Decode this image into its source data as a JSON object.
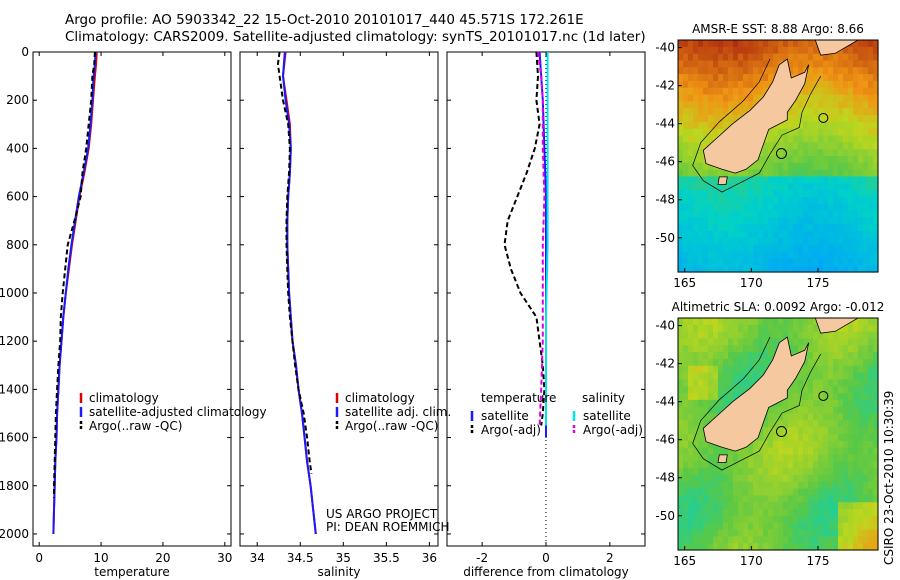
{
  "header": {
    "line1": "Argo profile: AO 5903342_22 15-Oct-2010 20101017_440 45.571S 172.261E",
    "line2": "Climatology: CARS2009. Satellite-adjusted climatology: synTS_20101017.nc (1d later)"
  },
  "credit": {
    "line1": "US ARGO PROJECT",
    "line2": "PI: DEAN ROEMMICH"
  },
  "footer": "CSIRO 23-Oct-2010 10:30:39",
  "colors": {
    "climatology": "#e00000",
    "satellite": "#1a1aff",
    "argo": "#000000",
    "sal_satellite": "#00e5e5",
    "sal_argo": "#e000e0",
    "land": "#f5c8a0"
  },
  "chart_data": [
    {
      "id": "temperature",
      "type": "line",
      "xlabel": "temperature",
      "xlim": [
        -1,
        31
      ],
      "ylim": [
        2050,
        0
      ],
      "xticks": [
        0,
        10,
        20,
        30
      ],
      "xtick_labels": [
        "0",
        "10",
        "20",
        "30"
      ],
      "yticks": [
        0,
        200,
        400,
        600,
        800,
        1000,
        1200,
        1400,
        1600,
        1800,
        2000
      ],
      "ytick_labels": [
        "0",
        "200",
        "400",
        "600",
        "800",
        "1000",
        "1200",
        "1400",
        "1600",
        "1800",
        "2000"
      ],
      "legend": [
        "climatology",
        "satellite-adjusted climatology",
        "Argo(..raw -QC)"
      ],
      "series": [
        {
          "name": "climatology",
          "color": "#e00000",
          "dash": "",
          "points": [
            [
              9.3,
              0
            ],
            [
              9.2,
              50
            ],
            [
              9.0,
              100
            ],
            [
              8.7,
              200
            ],
            [
              8.4,
              300
            ],
            [
              8.0,
              400
            ],
            [
              7.3,
              500
            ],
            [
              6.5,
              600
            ],
            [
              5.9,
              700
            ],
            [
              5.3,
              800
            ],
            [
              4.8,
              900
            ],
            [
              4.3,
              1000
            ],
            [
              3.9,
              1100
            ],
            [
              3.6,
              1200
            ],
            [
              3.3,
              1300
            ],
            [
              3.1,
              1400
            ],
            [
              2.9,
              1500
            ],
            [
              2.8,
              1600
            ],
            [
              2.6,
              1700
            ],
            [
              2.5,
              1800
            ],
            [
              2.4,
              1900
            ],
            [
              2.3,
              2000
            ]
          ]
        },
        {
          "name": "satellite-adjusted climatology",
          "color": "#1a1aff",
          "dash": "",
          "points": [
            [
              9.1,
              0
            ],
            [
              9.0,
              50
            ],
            [
              8.8,
              100
            ],
            [
              8.6,
              200
            ],
            [
              8.3,
              300
            ],
            [
              7.9,
              400
            ],
            [
              7.2,
              500
            ],
            [
              6.4,
              600
            ],
            [
              5.8,
              700
            ],
            [
              5.2,
              800
            ],
            [
              4.7,
              900
            ],
            [
              4.3,
              1000
            ],
            [
              3.9,
              1100
            ],
            [
              3.6,
              1200
            ],
            [
              3.3,
              1300
            ],
            [
              3.1,
              1400
            ],
            [
              2.9,
              1500
            ],
            [
              2.8,
              1600
            ],
            [
              2.6,
              1700
            ],
            [
              2.5,
              1800
            ],
            [
              2.4,
              1900
            ],
            [
              2.3,
              2000
            ]
          ]
        },
        {
          "name": "Argo(..raw -QC)",
          "color": "#000000",
          "dash": "5,3",
          "points": [
            [
              9.0,
              0
            ],
            [
              8.9,
              50
            ],
            [
              8.6,
              100
            ],
            [
              8.4,
              200
            ],
            [
              8.0,
              300
            ],
            [
              7.6,
              400
            ],
            [
              7.0,
              500
            ],
            [
              6.7,
              600
            ],
            [
              5.7,
              700
            ],
            [
              4.6,
              800
            ],
            [
              4.2,
              900
            ],
            [
              3.8,
              1000
            ],
            [
              3.5,
              1100
            ],
            [
              3.4,
              1200
            ],
            [
              3.1,
              1300
            ],
            [
              2.9,
              1400
            ],
            [
              2.7,
              1500
            ],
            [
              2.6,
              1600
            ],
            [
              2.5,
              1700
            ],
            [
              2.4,
              1800
            ],
            [
              2.4,
              1850
            ]
          ]
        }
      ]
    },
    {
      "id": "salinity",
      "type": "line",
      "xlabel": "salinity",
      "xlim": [
        33.8,
        36.1
      ],
      "ylim": [
        2050,
        0
      ],
      "xticks": [
        34,
        34.5,
        35,
        35.5,
        36
      ],
      "xtick_labels": [
        "34",
        "34.5",
        "35",
        "35.5",
        "36"
      ],
      "legend": [
        "climatology",
        "satellite adj. clim.",
        "Argo(..raw -QC)"
      ],
      "series": [
        {
          "name": "climatology",
          "color": "#e00000",
          "dash": "",
          "points": [
            [
              34.33,
              0
            ],
            [
              34.3,
              100
            ],
            [
              34.34,
              200
            ],
            [
              34.38,
              300
            ],
            [
              34.39,
              400
            ],
            [
              34.38,
              500
            ],
            [
              34.36,
              600
            ],
            [
              34.35,
              700
            ],
            [
              34.35,
              800
            ],
            [
              34.36,
              900
            ],
            [
              34.37,
              1000
            ],
            [
              34.39,
              1100
            ],
            [
              34.41,
              1200
            ],
            [
              34.45,
              1300
            ],
            [
              34.48,
              1400
            ],
            [
              34.52,
              1500
            ],
            [
              34.55,
              1600
            ],
            [
              34.58,
              1700
            ],
            [
              34.62,
              1800
            ],
            [
              34.65,
              1900
            ],
            [
              34.68,
              2000
            ]
          ]
        },
        {
          "name": "satellite adj. clim.",
          "color": "#1a1aff",
          "dash": "",
          "points": [
            [
              34.32,
              0
            ],
            [
              34.3,
              100
            ],
            [
              34.33,
              200
            ],
            [
              34.37,
              300
            ],
            [
              34.39,
              400
            ],
            [
              34.38,
              500
            ],
            [
              34.36,
              600
            ],
            [
              34.35,
              700
            ],
            [
              34.35,
              800
            ],
            [
              34.36,
              900
            ],
            [
              34.37,
              1000
            ],
            [
              34.39,
              1100
            ],
            [
              34.41,
              1200
            ],
            [
              34.45,
              1300
            ],
            [
              34.48,
              1400
            ],
            [
              34.52,
              1500
            ],
            [
              34.55,
              1600
            ],
            [
              34.58,
              1700
            ],
            [
              34.62,
              1800
            ],
            [
              34.65,
              1900
            ],
            [
              34.68,
              2000
            ]
          ]
        },
        {
          "name": "Argo(..raw -QC)",
          "color": "#000000",
          "dash": "5,3",
          "points": [
            [
              34.26,
              0
            ],
            [
              34.24,
              50
            ],
            [
              34.26,
              100
            ],
            [
              34.3,
              200
            ],
            [
              34.36,
              300
            ],
            [
              34.38,
              400
            ],
            [
              34.37,
              500
            ],
            [
              34.35,
              600
            ],
            [
              34.34,
              700
            ],
            [
              34.34,
              800
            ],
            [
              34.35,
              900
            ],
            [
              34.36,
              1000
            ],
            [
              34.38,
              1100
            ],
            [
              34.41,
              1200
            ],
            [
              34.44,
              1300
            ],
            [
              34.48,
              1400
            ],
            [
              34.54,
              1500
            ],
            [
              34.58,
              1600
            ],
            [
              34.61,
              1700
            ],
            [
              34.63,
              1750
            ]
          ]
        }
      ]
    },
    {
      "id": "difference",
      "type": "line",
      "xlabel": "difference from climatology",
      "xlim": [
        -3.1,
        3.1
      ],
      "ylim": [
        2050,
        0
      ],
      "xticks": [
        -2,
        0,
        2
      ],
      "xtick_labels": [
        "-2",
        "0",
        "2"
      ],
      "zero_line": 0,
      "legend_temperature_title": "temperature",
      "legend_salinity_title": "salinity",
      "legend": [
        "satellite",
        "Argo(-adj)",
        "satellite",
        "Argo(-adj)"
      ],
      "series": [
        {
          "name": "temperature satellite",
          "color": "#1a1aff",
          "dash": "",
          "points": [
            [
              -0.2,
              0
            ],
            [
              -0.15,
              100
            ],
            [
              -0.1,
              200
            ],
            [
              -0.05,
              400
            ],
            [
              0.0,
              600
            ],
            [
              0.0,
              800
            ],
            [
              0.0,
              1000
            ],
            [
              0.0,
              1200
            ],
            [
              0.0,
              1400
            ],
            [
              0.0,
              1600
            ]
          ]
        },
        {
          "name": "temperature Argo(-adj)",
          "color": "#000000",
          "dash": "5,3",
          "points": [
            [
              -0.3,
              0
            ],
            [
              -0.25,
              100
            ],
            [
              -0.3,
              200
            ],
            [
              -0.2,
              300
            ],
            [
              -0.35,
              400
            ],
            [
              -0.6,
              500
            ],
            [
              -0.9,
              600
            ],
            [
              -1.2,
              700
            ],
            [
              -1.3,
              800
            ],
            [
              -1.1,
              900
            ],
            [
              -0.8,
              1000
            ],
            [
              -0.3,
              1100
            ],
            [
              -0.2,
              1200
            ],
            [
              -0.1,
              1300
            ],
            [
              -0.05,
              1400
            ],
            [
              -0.1,
              1500
            ],
            [
              -0.15,
              1550
            ]
          ]
        },
        {
          "name": "salinity satellite",
          "color": "#00e5e5",
          "dash": "",
          "points": [
            [
              0.05,
              0
            ],
            [
              0.05,
              100
            ],
            [
              0.05,
              300
            ],
            [
              0.05,
              500
            ],
            [
              0.05,
              800
            ],
            [
              0.0,
              1100
            ],
            [
              0.0,
              1400
            ],
            [
              0.0,
              1550
            ]
          ]
        },
        {
          "name": "salinity Argo(-adj)",
          "color": "#e000e0",
          "dash": "5,3",
          "points": [
            [
              -0.25,
              0
            ],
            [
              -0.15,
              100
            ],
            [
              -0.1,
              200
            ],
            [
              -0.1,
              400
            ],
            [
              -0.05,
              600
            ],
            [
              -0.1,
              800
            ],
            [
              -0.1,
              1000
            ],
            [
              -0.1,
              1200
            ],
            [
              -0.15,
              1400
            ],
            [
              -0.2,
              1550
            ]
          ]
        }
      ]
    },
    {
      "id": "sst_map",
      "type": "heatmap",
      "title": "AMSR-E SST: 8.88 Argo: 8.66",
      "xticks": [
        165,
        170,
        175
      ],
      "xtick_labels": [
        "165",
        "170",
        "175"
      ],
      "yticks": [
        -40,
        -42,
        -44,
        -46,
        -48,
        -50
      ],
      "ytick_labels": [
        "-40",
        "-42",
        "-44",
        "-46",
        "-48",
        "-50"
      ],
      "xlim": [
        164.5,
        179.5
      ],
      "ylim": [
        -51.8,
        -39.6
      ]
    },
    {
      "id": "sla_map",
      "type": "heatmap",
      "title": "Altimetric SLA: 0.0092 Argo: -0.012",
      "xticks": [
        165,
        170,
        175
      ],
      "xtick_labels": [
        "165",
        "170",
        "175"
      ],
      "yticks": [
        -40,
        -42,
        -44,
        -46,
        -48,
        -50
      ],
      "ytick_labels": [
        "-40",
        "-42",
        "-44",
        "-46",
        "-48",
        "-50"
      ],
      "xlim": [
        164.5,
        179.5
      ],
      "ylim": [
        -51.8,
        -39.6
      ]
    }
  ]
}
